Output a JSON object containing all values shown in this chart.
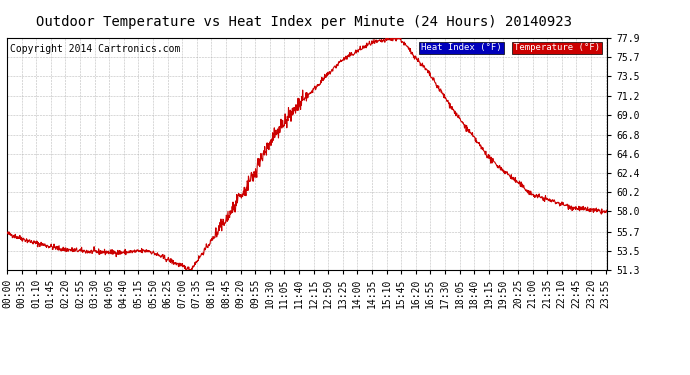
{
  "title": "Outdoor Temperature vs Heat Index per Minute (24 Hours) 20140923",
  "copyright": "Copyright 2014 Cartronics.com",
  "line_color": "#cc0000",
  "background_color": "#ffffff",
  "grid_color": "#aaaaaa",
  "ylim": [
    51.3,
    77.9
  ],
  "yticks": [
    51.3,
    53.5,
    55.7,
    58.0,
    60.2,
    62.4,
    64.6,
    66.8,
    69.0,
    71.2,
    73.5,
    75.7,
    77.9
  ],
  "legend_heat_index_bg": "#0000bb",
  "legend_temp_bg": "#cc0000",
  "legend_heat_index_text": "Heat Index (°F)",
  "legend_temp_text": "Temperature (°F)",
  "title_fontsize": 10,
  "copyright_fontsize": 7,
  "tick_fontsize": 7
}
